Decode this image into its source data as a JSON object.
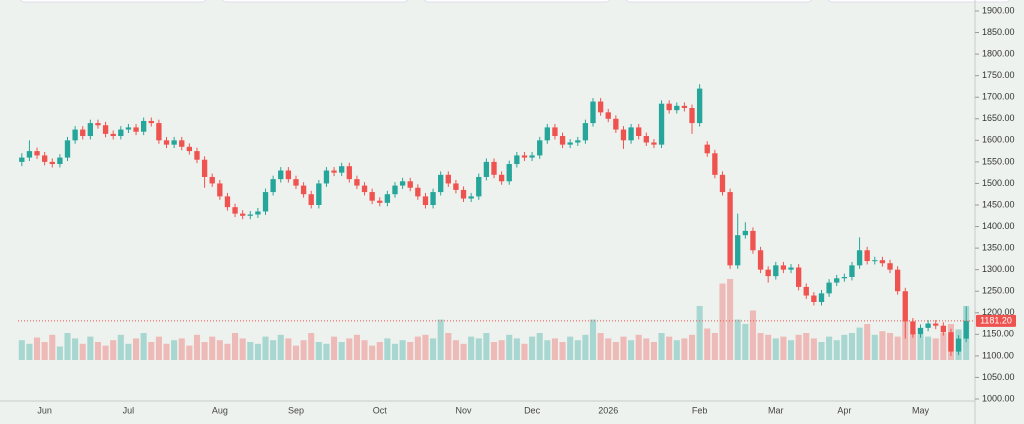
{
  "chart_data": {
    "type": "candlestick",
    "open": [
      1550,
      1560,
      1575,
      1565,
      1550,
      1545,
      1560,
      1600,
      1625,
      1610,
      1640,
      1635,
      1615,
      1610,
      1625,
      1630,
      1620,
      1645,
      1640,
      1600,
      1590,
      1600,
      1585,
      1575,
      1555,
      1515,
      1500,
      1470,
      1445,
      1430,
      1425,
      1428,
      1435,
      1480,
      1510,
      1530,
      1510,
      1495,
      1475,
      1450,
      1500,
      1530,
      1525,
      1540,
      1510,
      1495,
      1480,
      1460,
      1455,
      1475,
      1495,
      1505,
      1490,
      1470,
      1450,
      1480,
      1520,
      1500,
      1485,
      1465,
      1470,
      1515,
      1550,
      1520,
      1505,
      1545,
      1565,
      1560,
      1565,
      1600,
      1630,
      1610,
      1590,
      1595,
      1600,
      1640,
      1690,
      1665,
      1650,
      1625,
      1600,
      1630,
      1610,
      1595,
      1590,
      1685,
      1670,
      1680,
      1675,
      1640,
      1590,
      1570,
      1520,
      1480,
      1310,
      1380,
      1390,
      1345,
      1300,
      1285,
      1310,
      1300,
      1305,
      1260,
      1240,
      1225,
      1245,
      1270,
      1280,
      1283,
      1310,
      1345,
      1320,
      1322,
      1315,
      1300,
      1250,
      1180,
      1150,
      1165,
      1175,
      1170,
      1155,
      1110,
      1140
    ],
    "high": [
      1570,
      1600,
      1583,
      1573,
      1558,
      1568,
      1608,
      1633,
      1633,
      1648,
      1648,
      1643,
      1623,
      1633,
      1638,
      1638,
      1653,
      1653,
      1648,
      1608,
      1608,
      1608,
      1593,
      1583,
      1563,
      1523,
      1508,
      1478,
      1453,
      1438,
      1436,
      1443,
      1488,
      1518,
      1538,
      1538,
      1518,
      1503,
      1483,
      1508,
      1538,
      1538,
      1548,
      1548,
      1518,
      1503,
      1488,
      1468,
      1483,
      1503,
      1513,
      1513,
      1498,
      1478,
      1488,
      1528,
      1528,
      1508,
      1493,
      1478,
      1523,
      1558,
      1558,
      1528,
      1553,
      1573,
      1573,
      1573,
      1608,
      1638,
      1638,
      1618,
      1603,
      1608,
      1648,
      1698,
      1698,
      1673,
      1658,
      1633,
      1638,
      1638,
      1618,
      1603,
      1693,
      1693,
      1688,
      1688,
      1683,
      1730,
      1598,
      1578,
      1528,
      1488,
      1430,
      1410,
      1398,
      1353,
      1308,
      1318,
      1318,
      1313,
      1313,
      1268,
      1248,
      1253,
      1278,
      1288,
      1291,
      1318,
      1375,
      1353,
      1330,
      1330,
      1323,
      1308,
      1258,
      1188,
      1173,
      1183,
      1183,
      1178,
      1163,
      1148,
      1215
    ],
    "low": [
      1540,
      1552,
      1557,
      1542,
      1537,
      1537,
      1552,
      1592,
      1602,
      1602,
      1627,
      1607,
      1602,
      1602,
      1617,
      1612,
      1612,
      1632,
      1592,
      1582,
      1582,
      1577,
      1567,
      1547,
      1490,
      1492,
      1462,
      1437,
      1422,
      1417,
      1417,
      1420,
      1427,
      1472,
      1502,
      1502,
      1487,
      1467,
      1442,
      1442,
      1492,
      1517,
      1517,
      1502,
      1487,
      1472,
      1452,
      1447,
      1447,
      1467,
      1487,
      1482,
      1462,
      1442,
      1442,
      1472,
      1492,
      1477,
      1457,
      1457,
      1462,
      1507,
      1512,
      1497,
      1497,
      1537,
      1552,
      1552,
      1557,
      1592,
      1602,
      1582,
      1582,
      1587,
      1592,
      1632,
      1657,
      1642,
      1617,
      1580,
      1592,
      1602,
      1587,
      1582,
      1582,
      1662,
      1662,
      1667,
      1615,
      1632,
      1562,
      1512,
      1472,
      1302,
      1302,
      1372,
      1337,
      1292,
      1270,
      1277,
      1292,
      1292,
      1252,
      1232,
      1217,
      1217,
      1237,
      1262,
      1272,
      1275,
      1302,
      1312,
      1312,
      1307,
      1292,
      1242,
      1140,
      1142,
      1142,
      1157,
      1162,
      1147,
      1100,
      1102,
      1132
    ],
    "close": [
      1560,
      1575,
      1565,
      1550,
      1545,
      1560,
      1600,
      1625,
      1610,
      1640,
      1635,
      1615,
      1610,
      1625,
      1630,
      1620,
      1645,
      1640,
      1600,
      1590,
      1600,
      1585,
      1575,
      1555,
      1515,
      1500,
      1470,
      1445,
      1430,
      1425,
      1428,
      1435,
      1480,
      1510,
      1530,
      1510,
      1495,
      1475,
      1450,
      1500,
      1530,
      1525,
      1540,
      1510,
      1495,
      1480,
      1460,
      1455,
      1475,
      1495,
      1505,
      1490,
      1470,
      1450,
      1480,
      1520,
      1500,
      1485,
      1465,
      1470,
      1515,
      1550,
      1520,
      1505,
      1545,
      1565,
      1560,
      1565,
      1600,
      1630,
      1610,
      1590,
      1595,
      1600,
      1640,
      1690,
      1665,
      1650,
      1625,
      1600,
      1630,
      1610,
      1595,
      1590,
      1685,
      1670,
      1680,
      1675,
      1640,
      1720,
      1570,
      1520,
      1480,
      1310,
      1380,
      1390,
      1345,
      1300,
      1285,
      1310,
      1300,
      1305,
      1260,
      1240,
      1225,
      1245,
      1270,
      1280,
      1283,
      1310,
      1345,
      1320,
      1322,
      1315,
      1300,
      1250,
      1180,
      1150,
      1165,
      1175,
      1170,
      1155,
      1110,
      1140,
      1181.2
    ],
    "volume": [
      22,
      18,
      25,
      20,
      28,
      15,
      30,
      24,
      18,
      26,
      20,
      16,
      22,
      28,
      18,
      24,
      30,
      20,
      26,
      18,
      22,
      24,
      16,
      28,
      20,
      26,
      22,
      18,
      30,
      24,
      20,
      18,
      26,
      22,
      28,
      24,
      16,
      22,
      30,
      20,
      18,
      26,
      20,
      24,
      28,
      22,
      16,
      20,
      24,
      18,
      22,
      20,
      26,
      28,
      24,
      45,
      30,
      22,
      18,
      26,
      24,
      30,
      20,
      22,
      28,
      24,
      18,
      26,
      30,
      22,
      24,
      20,
      26,
      22,
      28,
      45,
      30,
      24,
      20,
      26,
      22,
      28,
      24,
      20,
      30,
      26,
      22,
      24,
      28,
      60,
      35,
      30,
      85,
      90,
      45,
      40,
      55,
      30,
      28,
      24,
      26,
      22,
      28,
      30,
      24,
      20,
      26,
      22,
      28,
      30,
      36,
      40,
      28,
      32,
      30,
      26,
      44,
      30,
      28,
      26,
      24,
      30,
      40,
      34,
      60
    ],
    "vlim": [
      0,
      100
    ],
    "xticks": [
      {
        "value": 3,
        "label": "Jun"
      },
      {
        "value": 14,
        "label": "Jul"
      },
      {
        "value": 26,
        "label": "Aug"
      },
      {
        "value": 36,
        "label": "Sep"
      },
      {
        "value": 47,
        "label": "Oct"
      },
      {
        "value": 58,
        "label": "Nov"
      },
      {
        "value": 67,
        "label": "Dec"
      },
      {
        "value": 77,
        "label": "2026"
      },
      {
        "value": 89,
        "label": "Feb"
      },
      {
        "value": 99,
        "label": "Mar"
      },
      {
        "value": 108,
        "label": "Apr"
      },
      {
        "value": 118,
        "label": "May"
      }
    ],
    "ylim": [
      1000,
      1900
    ],
    "yticks": [
      {
        "value": 1000,
        "label": "1000.00"
      },
      {
        "value": 1050,
        "label": "1050.00"
      },
      {
        "value": 1100,
        "label": "1100.00"
      },
      {
        "value": 1150,
        "label": "1150.00"
      },
      {
        "value": 1200,
        "label": "1200.00"
      },
      {
        "value": 1250,
        "label": "1250.00"
      },
      {
        "value": 1300,
        "label": "1300.00"
      },
      {
        "value": 1350,
        "label": "1350.00"
      },
      {
        "value": 1400,
        "label": "1400.00"
      },
      {
        "value": 1450,
        "label": "1450.00"
      },
      {
        "value": 1500,
        "label": "1500.00"
      },
      {
        "value": 1550,
        "label": "1550.00"
      },
      {
        "value": 1600,
        "label": "1600.00"
      },
      {
        "value": 1650,
        "label": "1650.00"
      },
      {
        "value": 1700,
        "label": "1700.00"
      },
      {
        "value": 1750,
        "label": "1750.00"
      },
      {
        "value": 1800,
        "label": "1800.00"
      },
      {
        "value": 1850,
        "label": "1850.00"
      },
      {
        "value": 1900,
        "label": "1900.00"
      }
    ],
    "last_price": {
      "value": 1181.2,
      "label": "1181.20"
    },
    "up_color": "#26a69a",
    "down_color": "#ef5350"
  }
}
